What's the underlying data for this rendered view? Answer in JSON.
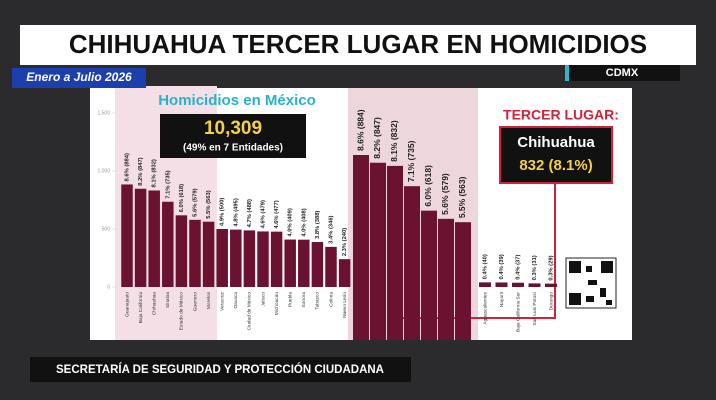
{
  "headline": "CHIHUAHUA TERCER LUGAR EN HOMICIDIOS",
  "period": "Enero a Julio 2026",
  "location": "CDMX",
  "total": {
    "title": "Homicidios en México",
    "value": "10,309",
    "note": "(49% en 7 Entidades)"
  },
  "highlight": {
    "title": "TERCER LUGAR:",
    "state": "Chihuahua",
    "value": "832 (8.1%)"
  },
  "footer": "SECRETARÍA DE SEGURIDAD Y PROTECCIÓN CIUDADANA",
  "chart_data": {
    "type": "bar",
    "categories": [
      "Guanajuato",
      "Baja California",
      "Chihuahua",
      "Sinaloa",
      "Estado de México",
      "Guerrero",
      "Morelos",
      "Veracruz",
      "Oaxaca",
      "Ciudad de México",
      "Jalisco",
      "Michoacán",
      "Puebla",
      "Sonora",
      "Tabasco",
      "Colima",
      "Nuevo León",
      "Aguascalientes",
      "Nayarit",
      "Baja California Sur",
      "San Luis Potosí",
      "Durango"
    ],
    "values": [
      884,
      847,
      832,
      735,
      618,
      579,
      563,
      500,
      495,
      488,
      479,
      477,
      409,
      408,
      388,
      346,
      240,
      40,
      39,
      37,
      31,
      29
    ],
    "value_labels": [
      "8.6% (884)",
      "8.2% (847)",
      "8.1% (832)",
      "7.1% (735)",
      "6.0% (618)",
      "5.6% (579)",
      "5.5% (563)",
      "4.9% (500)",
      "4.8% (495)",
      "4.7% (488)",
      "4.6% (479)",
      "4.6% (477)",
      "4.0% (409)",
      "4.0% (408)",
      "3.8% (388)",
      "3.4% (346)",
      "2.3% (240)",
      "0.4% (40)",
      "0.4% (39)",
      "0.4% (37)",
      "0.3% (31)",
      "0.3% (29)"
    ],
    "color": "#6b1230",
    "ylim": [
      0,
      1500
    ],
    "yticks": [
      0,
      500,
      {
        "value": 1000,
        "label": "1,000"
      },
      {
        "value": 1500,
        "label": "1,500"
      }
    ],
    "grid": false
  }
}
